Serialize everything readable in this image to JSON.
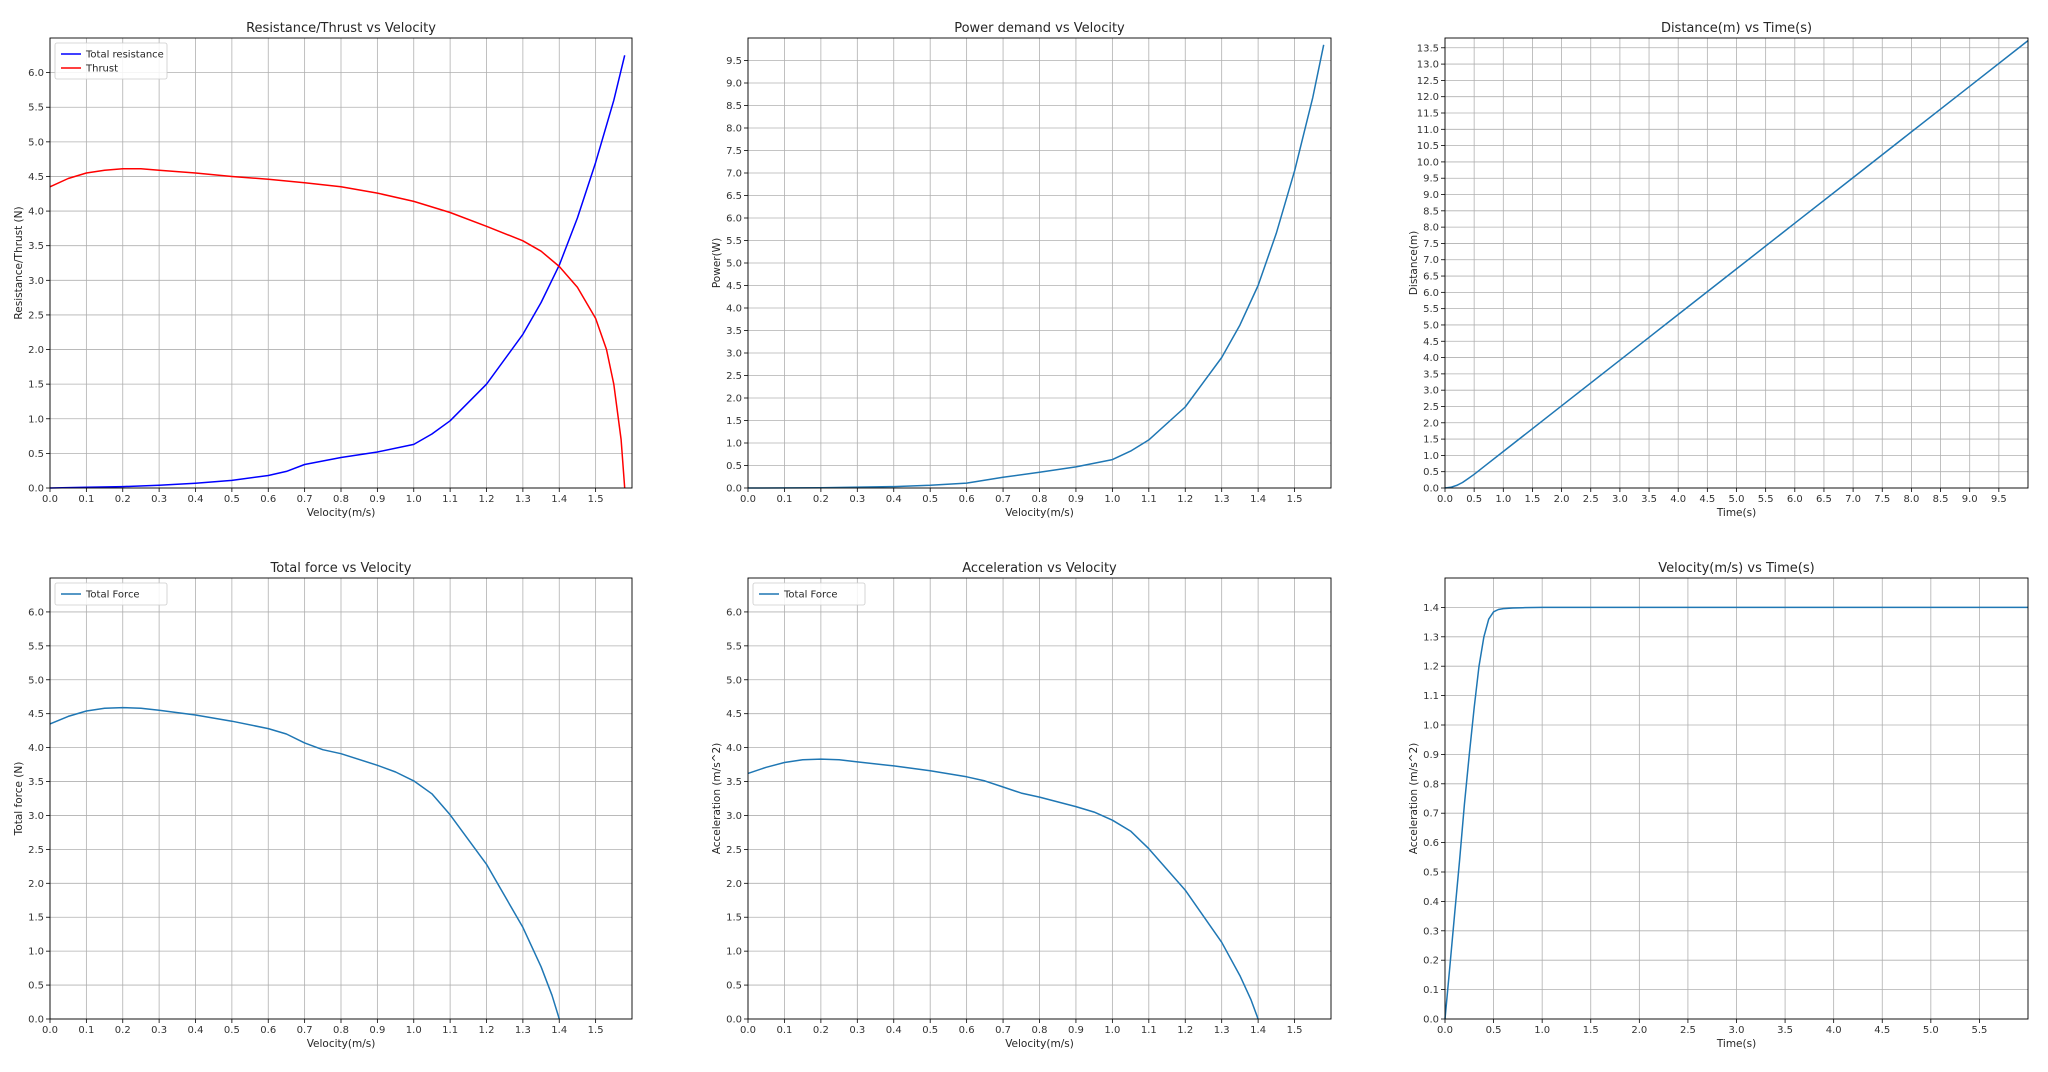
{
  "chart_data": [
    {
      "type": "line",
      "title": "Resistance/Thrust vs Velocity",
      "xlabel": "Velocity(m/s)",
      "ylabel": "Resistance/Thrust (N)",
      "xlim": [
        0,
        1.6
      ],
      "ylim": [
        0,
        6.5
      ],
      "xticks": [
        "0.0",
        "0.1",
        "0.2",
        "0.3",
        "0.4",
        "0.5",
        "0.6",
        "0.7",
        "0.8",
        "0.9",
        "1.0",
        "1.1",
        "1.2",
        "1.3",
        "1.4",
        "1.5"
      ],
      "yticks": [
        "0.0",
        "0.5",
        "1.0",
        "1.5",
        "2.0",
        "2.5",
        "3.0",
        "3.5",
        "4.0",
        "4.5",
        "5.0",
        "5.5",
        "6.0"
      ],
      "grid": true,
      "legend": "top-left",
      "series": [
        {
          "name": "Total resistance",
          "color": "#0000ff",
          "x": [
            0,
            0.1,
            0.2,
            0.3,
            0.4,
            0.5,
            0.6,
            0.65,
            0.7,
            0.75,
            0.8,
            0.9,
            1.0,
            1.05,
            1.1,
            1.2,
            1.3,
            1.35,
            1.4,
            1.45,
            1.5,
            1.55,
            1.58
          ],
          "y": [
            0,
            0.01,
            0.02,
            0.04,
            0.07,
            0.11,
            0.18,
            0.24,
            0.34,
            0.39,
            0.44,
            0.52,
            0.63,
            0.78,
            0.97,
            1.5,
            2.22,
            2.68,
            3.22,
            3.9,
            4.7,
            5.6,
            6.25
          ]
        },
        {
          "name": "Thrust",
          "color": "#ff0000",
          "x": [
            0,
            0.05,
            0.1,
            0.15,
            0.2,
            0.25,
            0.3,
            0.4,
            0.5,
            0.6,
            0.7,
            0.8,
            0.9,
            1.0,
            1.1,
            1.2,
            1.3,
            1.35,
            1.4,
            1.45,
            1.5,
            1.53,
            1.55,
            1.57,
            1.58
          ],
          "y": [
            4.35,
            4.47,
            4.55,
            4.59,
            4.61,
            4.61,
            4.59,
            4.55,
            4.5,
            4.46,
            4.41,
            4.35,
            4.26,
            4.14,
            3.98,
            3.78,
            3.57,
            3.42,
            3.2,
            2.9,
            2.45,
            2.0,
            1.5,
            0.7,
            0
          ]
        }
      ]
    },
    {
      "type": "line",
      "title": "Power demand vs Velocity",
      "xlabel": "Velocity(m/s)",
      "ylabel": "Power(W)",
      "xlim": [
        0,
        1.6
      ],
      "ylim": [
        0,
        10
      ],
      "xticks": [
        "0.0",
        "0.1",
        "0.2",
        "0.3",
        "0.4",
        "0.5",
        "0.6",
        "0.7",
        "0.8",
        "0.9",
        "1.0",
        "1.1",
        "1.2",
        "1.3",
        "1.4",
        "1.5"
      ],
      "yticks": [
        "0.0",
        "0.5",
        "1.0",
        "1.5",
        "2.0",
        "2.5",
        "3.0",
        "3.5",
        "4.0",
        "4.5",
        "5.0",
        "5.5",
        "6.0",
        "6.5",
        "7.0",
        "7.5",
        "8.0",
        "8.5",
        "9.0",
        "9.5"
      ],
      "grid": true,
      "series": [
        {
          "color": "#1f77b4",
          "x": [
            0,
            0.2,
            0.4,
            0.5,
            0.6,
            0.7,
            0.8,
            0.9,
            1.0,
            1.05,
            1.1,
            1.2,
            1.3,
            1.35,
            1.4,
            1.45,
            1.5,
            1.55,
            1.58
          ],
          "y": [
            0,
            0.004,
            0.03,
            0.06,
            0.11,
            0.24,
            0.35,
            0.47,
            0.63,
            0.82,
            1.07,
            1.8,
            2.9,
            3.62,
            4.5,
            5.66,
            7.05,
            8.68,
            9.85
          ]
        }
      ]
    },
    {
      "type": "line",
      "title": "Distance(m) vs Time(s)",
      "xlabel": "Time(s)",
      "ylabel": "Distance(m)",
      "xlim": [
        0,
        10
      ],
      "ylim": [
        0,
        13.8
      ],
      "xticks": [
        "0.0",
        "0.5",
        "1.0",
        "1.5",
        "2.0",
        "2.5",
        "3.0",
        "3.5",
        "4.0",
        "4.5",
        "5.0",
        "5.5",
        "6.0",
        "6.5",
        "7.0",
        "7.5",
        "8.0",
        "8.5",
        "9.0",
        "9.5"
      ],
      "yticks": [
        "0.0",
        "0.5",
        "1.0",
        "1.5",
        "2.0",
        "2.5",
        "3.0",
        "3.5",
        "4.0",
        "4.5",
        "5.0",
        "5.5",
        "6.0",
        "6.5",
        "7.0",
        "7.5",
        "8.0",
        "8.5",
        "9.0",
        "9.5",
        "10.0",
        "10.5",
        "11.0",
        "11.5",
        "12.0",
        "12.5",
        "13.0",
        "13.5"
      ],
      "grid": true,
      "series": [
        {
          "color": "#1f77b4",
          "x": [
            0,
            0.1,
            0.2,
            0.3,
            0.4,
            0.5,
            0.7,
            1,
            2,
            3,
            4,
            5,
            6,
            7,
            8,
            9,
            10
          ],
          "y": [
            0,
            0.02,
            0.08,
            0.17,
            0.29,
            0.42,
            0.7,
            1.12,
            2.52,
            3.92,
            5.32,
            6.72,
            8.12,
            9.52,
            10.92,
            12.32,
            13.72
          ]
        }
      ]
    },
    {
      "type": "line",
      "title": "Total force vs Velocity",
      "xlabel": "Velocity(m/s)",
      "ylabel": "Total force (N)",
      "xlim": [
        0,
        1.6
      ],
      "ylim": [
        0,
        6.5
      ],
      "xticks": [
        "0.0",
        "0.1",
        "0.2",
        "0.3",
        "0.4",
        "0.5",
        "0.6",
        "0.7",
        "0.8",
        "0.9",
        "1.0",
        "1.1",
        "1.2",
        "1.3",
        "1.4",
        "1.5"
      ],
      "yticks": [
        "0.0",
        "0.5",
        "1.0",
        "1.5",
        "2.0",
        "2.5",
        "3.0",
        "3.5",
        "4.0",
        "4.5",
        "5.0",
        "5.5",
        "6.0"
      ],
      "grid": true,
      "legend": "top-left",
      "series": [
        {
          "name": "Total Force",
          "color": "#1f77b4",
          "x": [
            0,
            0.05,
            0.1,
            0.15,
            0.2,
            0.25,
            0.3,
            0.4,
            0.5,
            0.6,
            0.65,
            0.7,
            0.75,
            0.8,
            0.9,
            0.95,
            1.0,
            1.05,
            1.1,
            1.2,
            1.3,
            1.35,
            1.38,
            1.4
          ],
          "y": [
            4.35,
            4.46,
            4.54,
            4.58,
            4.59,
            4.58,
            4.55,
            4.48,
            4.39,
            4.28,
            4.2,
            4.07,
            3.97,
            3.91,
            3.74,
            3.64,
            3.51,
            3.32,
            3.01,
            2.28,
            1.35,
            0.77,
            0.35,
            0
          ]
        }
      ]
    },
    {
      "type": "line",
      "title": "Acceleration vs Velocity",
      "xlabel": "Velocity(m/s)",
      "ylabel": "Acceleration (m/s^2)",
      "xlim": [
        0,
        1.6
      ],
      "ylim": [
        0,
        6.5
      ],
      "xticks": [
        "0.0",
        "0.1",
        "0.2",
        "0.3",
        "0.4",
        "0.5",
        "0.6",
        "0.7",
        "0.8",
        "0.9",
        "1.0",
        "1.1",
        "1.2",
        "1.3",
        "1.4",
        "1.5"
      ],
      "yticks": [
        "0.0",
        "0.5",
        "1.0",
        "1.5",
        "2.0",
        "2.5",
        "3.0",
        "3.5",
        "4.0",
        "4.5",
        "5.0",
        "5.5",
        "6.0"
      ],
      "grid": true,
      "legend": "top-left",
      "series": [
        {
          "name": "Total Force",
          "color": "#1f77b4",
          "x": [
            0,
            0.05,
            0.1,
            0.15,
            0.2,
            0.25,
            0.3,
            0.4,
            0.5,
            0.6,
            0.65,
            0.7,
            0.75,
            0.8,
            0.9,
            0.95,
            1.0,
            1.05,
            1.1,
            1.2,
            1.3,
            1.35,
            1.38,
            1.4
          ],
          "y": [
            3.62,
            3.71,
            3.78,
            3.82,
            3.83,
            3.82,
            3.79,
            3.73,
            3.66,
            3.57,
            3.51,
            3.42,
            3.33,
            3.27,
            3.13,
            3.05,
            2.93,
            2.77,
            2.51,
            1.9,
            1.13,
            0.64,
            0.29,
            0
          ]
        }
      ]
    },
    {
      "type": "line",
      "title": "Velocity(m/s) vs Time(s)",
      "xlabel": "Time(s)",
      "ylabel": "Acceleration (m/s^2)",
      "xlim": [
        0,
        6
      ],
      "ylim": [
        0,
        1.5
      ],
      "xticks": [
        "0.0",
        "0.5",
        "1.0",
        "1.5",
        "2.0",
        "2.5",
        "3.0",
        "3.5",
        "4.0",
        "4.5",
        "5.0",
        "5.5"
      ],
      "yticks": [
        "0.0",
        "0.1",
        "0.2",
        "0.3",
        "0.4",
        "0.5",
        "0.6",
        "0.7",
        "0.8",
        "0.9",
        "1.0",
        "1.1",
        "1.2",
        "1.3",
        "1.4"
      ],
      "grid": true,
      "series": [
        {
          "color": "#1f77b4",
          "x": [
            0,
            0.05,
            0.1,
            0.15,
            0.2,
            0.25,
            0.3,
            0.35,
            0.4,
            0.45,
            0.5,
            0.55,
            0.6,
            0.7,
            0.8,
            1,
            6
          ],
          "y": [
            0,
            0.18,
            0.36,
            0.54,
            0.73,
            0.9,
            1.06,
            1.2,
            1.3,
            1.36,
            1.385,
            1.393,
            1.396,
            1.398,
            1.399,
            1.4,
            1.4
          ]
        }
      ]
    }
  ]
}
